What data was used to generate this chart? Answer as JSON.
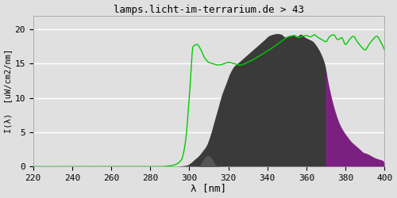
{
  "title_text": "lamps.licht-im-terrarium.de > 43",
  "xlabel": "λ [nm]",
  "ylabel": "I(λ)  [uW/cm2/nm]",
  "xlim": [
    220,
    400
  ],
  "ylim": [
    0,
    22
  ],
  "yticks": [
    0,
    5,
    10,
    15,
    20
  ],
  "xticks": [
    220,
    240,
    260,
    280,
    300,
    320,
    340,
    360,
    380,
    400
  ],
  "bg_color": "#e0e0e0",
  "plot_bg_color": "#e0e0e0",
  "grid_color": "#ffffff",
  "line_color": "#00cc00",
  "fill_dark_color": "#3a3a3a",
  "fill_purple_color": "#7b2080",
  "font_color": "#000000",
  "font_family": "monospace",
  "green_x": [
    220,
    270,
    285,
    290,
    293,
    296,
    298,
    300,
    302,
    304,
    306,
    308,
    310,
    312,
    315,
    318,
    320,
    323,
    326,
    330,
    334,
    338,
    342,
    346,
    350,
    352,
    354,
    356,
    358,
    360,
    362,
    364,
    366,
    368,
    370,
    372,
    374,
    376,
    378,
    380,
    382,
    384,
    386,
    388,
    390,
    392,
    394,
    396,
    398,
    400
  ],
  "green_y": [
    0,
    0,
    0,
    0.1,
    0.3,
    1.0,
    3.5,
    10.0,
    17.5,
    17.8,
    17.0,
    15.8,
    15.2,
    15.0,
    14.8,
    15.0,
    15.2,
    15.0,
    14.8,
    15.2,
    15.8,
    16.5,
    17.2,
    18.0,
    18.8,
    19.0,
    19.1,
    18.8,
    19.0,
    19.1,
    18.9,
    19.2,
    18.8,
    18.5,
    18.2,
    19.0,
    19.2,
    18.5,
    18.8,
    17.8,
    18.5,
    19.0,
    18.2,
    17.5,
    17.0,
    17.8,
    18.5,
    19.0,
    18.2,
    17.0
  ],
  "fill_x": [
    295,
    297,
    299,
    301,
    303,
    305,
    307,
    309,
    311,
    313,
    315,
    317,
    319,
    321,
    323,
    325,
    327,
    329,
    331,
    333,
    335,
    337,
    339,
    341,
    343,
    345,
    347,
    349,
    351,
    353,
    355,
    357,
    359,
    361,
    363,
    365,
    367,
    369,
    371,
    373,
    375,
    377,
    379,
    381,
    383,
    385,
    387,
    389,
    391,
    393,
    395,
    397,
    399,
    400
  ],
  "fill_y": [
    0.0,
    0.05,
    0.15,
    0.5,
    1.0,
    1.5,
    2.2,
    3.0,
    4.5,
    6.5,
    8.5,
    10.5,
    12.0,
    13.5,
    14.5,
    15.0,
    15.5,
    16.0,
    16.5,
    17.0,
    17.5,
    18.0,
    18.5,
    19.0,
    19.2,
    19.3,
    19.2,
    18.8,
    19.0,
    19.1,
    18.8,
    19.2,
    18.8,
    18.5,
    18.2,
    17.5,
    16.5,
    15.0,
    12.0,
    9.5,
    7.5,
    6.0,
    5.0,
    4.2,
    3.5,
    3.0,
    2.5,
    2.0,
    1.8,
    1.5,
    1.2,
    1.0,
    0.8,
    0.0
  ],
  "bump_x": [
    305,
    306,
    307,
    308,
    309,
    310,
    311,
    312,
    313,
    314,
    315
  ],
  "bump_y": [
    0.0,
    0.3,
    0.8,
    1.2,
    1.5,
    1.5,
    1.2,
    0.8,
    0.3,
    0.1,
    0.0
  ]
}
